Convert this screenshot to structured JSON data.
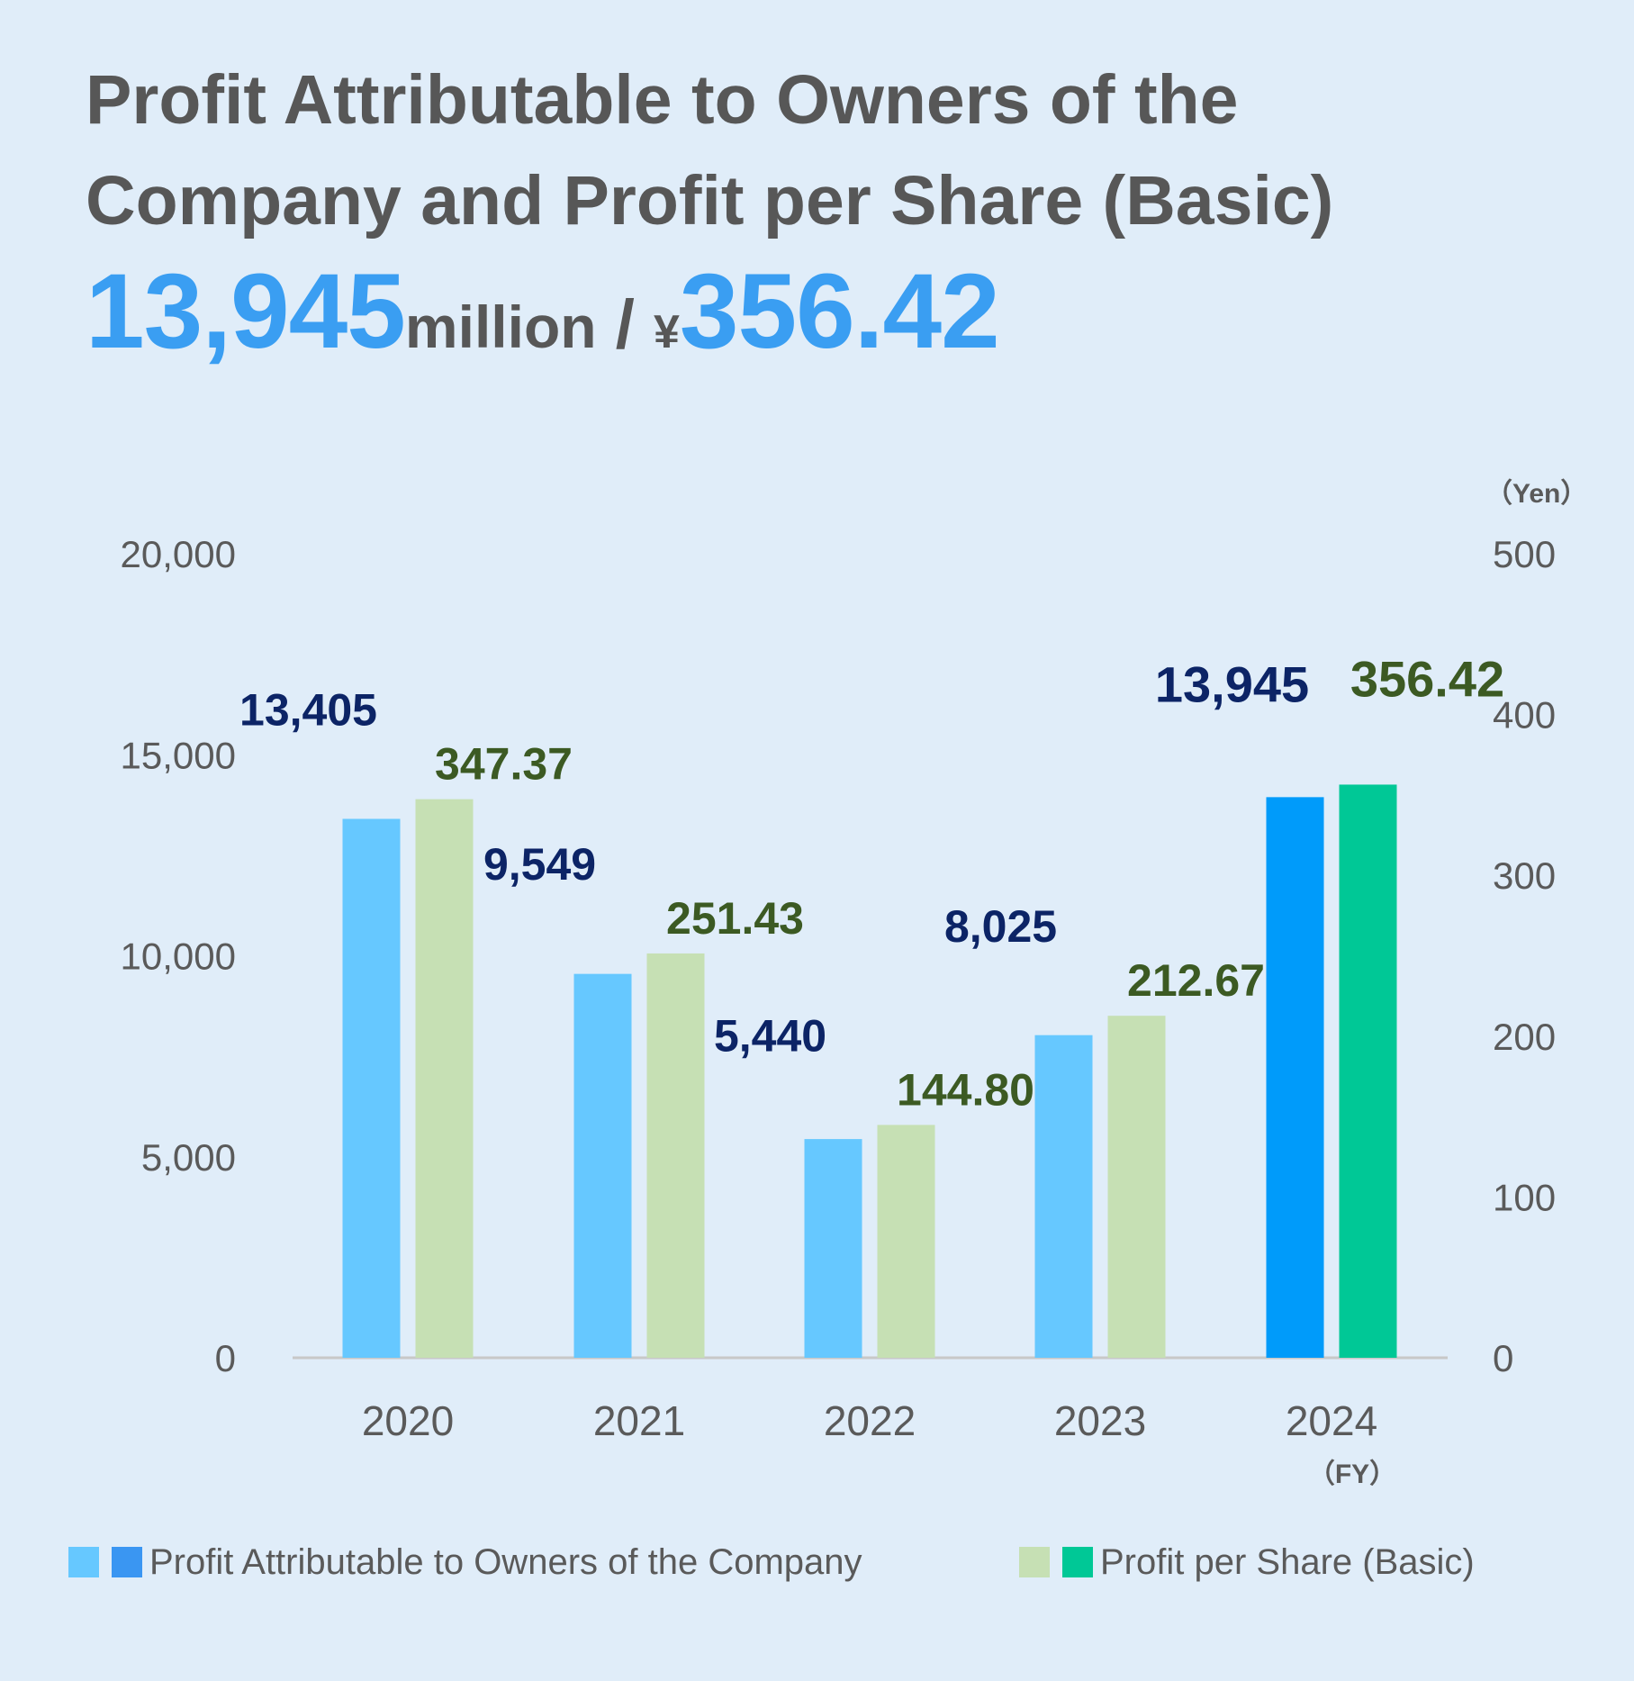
{
  "title_lines": [
    "Profit Attributable to Owners of the",
    "Company and Profit per Share (Basic)"
  ],
  "headline": {
    "profit_value": "13,945",
    "profit_unit": "million",
    "separator": " / ",
    "eps_currency": "¥",
    "eps_value": "356.42"
  },
  "legend": {
    "profit_label": "Profit Attributable to Owners of the Company",
    "eps_label": "Profit per Share (Basic)"
  },
  "colors": {
    "profit_past": "#66c8ff",
    "profit_current": "#009bfa",
    "eps_past": "#c6e0b4",
    "eps_current": "#00c896",
    "profit_label": "#0c2466",
    "eps_label": "#3c5a23",
    "headline_accent": "#3a9ef2"
  },
  "chart_data": {
    "type": "bar",
    "categories": [
      "2020",
      "2021",
      "2022",
      "2023",
      "2024"
    ],
    "x_unit_label": "（FY）",
    "series": [
      {
        "name": "Profit Attributable to Owners of the Company",
        "axis": "left",
        "values": [
          13405,
          9549,
          5440,
          8025,
          13945
        ],
        "value_labels": [
          "13,405",
          "9,549",
          "5,440",
          "8,025",
          "13,945"
        ]
      },
      {
        "name": "Profit per Share (Basic)",
        "axis": "right",
        "values": [
          347.37,
          251.43,
          144.8,
          212.67,
          356.42
        ],
        "value_labels": [
          "347.37",
          "251.43",
          "144.80",
          "212.67",
          "356.42"
        ]
      }
    ],
    "left_axis": {
      "ylim": [
        0,
        20000
      ],
      "ticks": [
        0,
        5000,
        10000,
        15000,
        20000
      ],
      "tick_labels": [
        "0",
        "5,000",
        "10,000",
        "15,000",
        "20,000"
      ]
    },
    "right_axis": {
      "ylim": [
        0,
        500
      ],
      "ticks": [
        0,
        100,
        200,
        300,
        400,
        500
      ],
      "tick_labels": [
        "0",
        "100",
        "200",
        "300",
        "400",
        "500"
      ],
      "unit_label": "（Yen）"
    },
    "highlight_category": "2024",
    "grid": false,
    "legend_position": "bottom"
  }
}
